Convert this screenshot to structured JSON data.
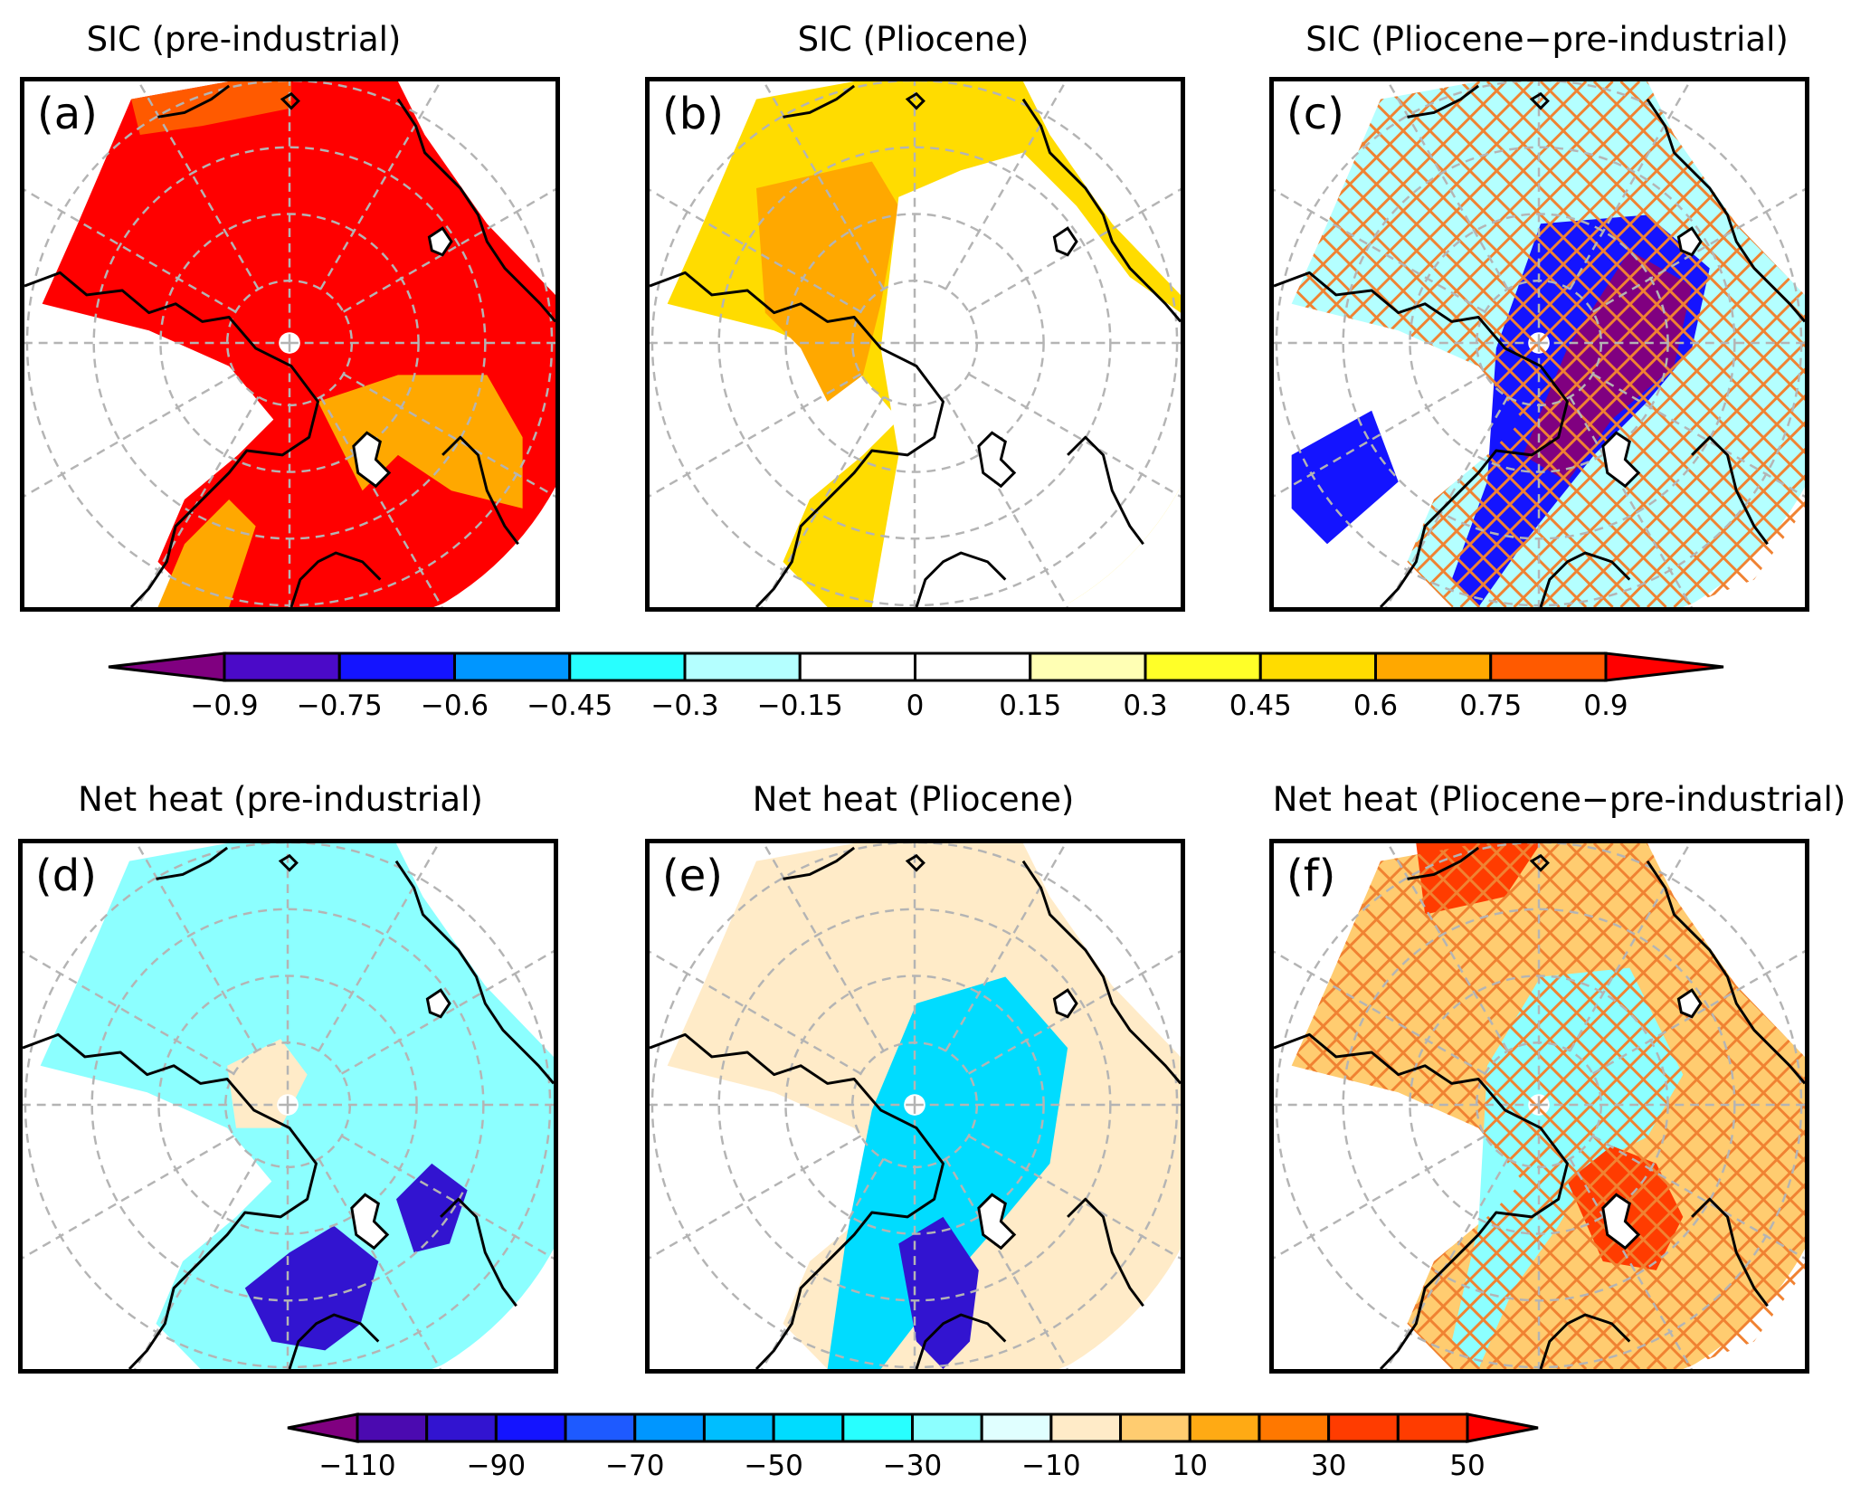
{
  "figure": {
    "rows": [
      {
        "variable": "SIC",
        "panels": [
          {
            "id": "a",
            "label": "(a)",
            "title": "SIC (pre-industrial)",
            "field": "sic_pi",
            "hatching": "none"
          },
          {
            "id": "b",
            "label": "(b)",
            "title": "SIC (Pliocene)",
            "field": "sic_plio",
            "hatching": "none"
          },
          {
            "id": "c",
            "label": "(c)",
            "title": "SIC (Pliocene−pre-industrial)",
            "field": "sic_diff",
            "hatching": "significance"
          }
        ],
        "colorbar": {
          "ticks": [
            "−0.9",
            "−0.75",
            "−0.6",
            "−0.45",
            "−0.3",
            "−0.15",
            "0",
            "0.15",
            "0.3",
            "0.45",
            "0.6",
            "0.75",
            "0.9"
          ],
          "levels": [
            -0.9,
            -0.75,
            -0.6,
            -0.45,
            -0.3,
            -0.15,
            0,
            0.15,
            0.3,
            0.45,
            0.6,
            0.75,
            0.9
          ],
          "under_color": "#800080",
          "colors": [
            "#4B0AC8",
            "#1414FF",
            "#0096FF",
            "#28FFFF",
            "#B4FFFF",
            "#FFFFFF",
            "#FFFFFF",
            "#FFFFB4",
            "#FFFF28",
            "#FFDC00",
            "#FFA800",
            "#FF5A00"
          ],
          "over_color": "#FF0000",
          "extend": "both"
        }
      },
      {
        "variable": "Net heat",
        "panels": [
          {
            "id": "d",
            "label": "(d)",
            "title": "Net heat (pre-industrial)",
            "field": "heat_pi",
            "hatching": "none"
          },
          {
            "id": "e",
            "label": "(e)",
            "title": "Net heat (Pliocene)",
            "field": "heat_plio",
            "hatching": "none"
          },
          {
            "id": "f",
            "label": "(f)",
            "title": "Net heat (Pliocene−pre-industrial)",
            "field": "heat_diff",
            "hatching": "significance"
          }
        ],
        "colorbar": {
          "ticks": [
            "−110",
            "−90",
            "−70",
            "−50",
            "−30",
            "−10",
            "10",
            "30",
            "50"
          ],
          "levels": [
            -110,
            -100,
            -90,
            -80,
            -70,
            -60,
            -50,
            -40,
            -30,
            -20,
            -10,
            0,
            10,
            20,
            30,
            40,
            50
          ],
          "tick_values": [
            -110,
            -90,
            -70,
            -50,
            -30,
            -10,
            10,
            30,
            50
          ],
          "under_color": "#800080",
          "colors": [
            "#4B0AB0",
            "#3214D0",
            "#1414FF",
            "#1E5AFF",
            "#0096FF",
            "#00BEFF",
            "#00DCFF",
            "#28FFFF",
            "#8CFFFF",
            "#E0FFFF",
            "#FFEBC8",
            "#FFCC70",
            "#FFAA14",
            "#FF7800",
            "#FF3C00",
            "#FF3C00"
          ],
          "over_color": "#FF0000",
          "extend": "both"
        }
      }
    ],
    "map": {
      "projection": "north-polar-stereographic",
      "grid_color": "#B4B4B4",
      "coast_color": "#000000",
      "hatch_color": "#F08232",
      "parallels_count": 4,
      "meridian_step_deg": 30
    },
    "fields": {
      "sic_pi": {
        "dominant": 0.95,
        "atlantic_edge": 0.6,
        "pacific_edge": 0.75
      },
      "sic_plio": {
        "dominant": 0.5,
        "central_high": 0.7,
        "eastern_arctic": 0.1
      },
      "sic_diff": {
        "dominant": -0.2,
        "eurasian_basin": -0.95,
        "ice_edge": -0.7
      },
      "heat_pi": {
        "dominant": -25,
        "barents_sea": -100,
        "central_arctic": -10
      },
      "heat_plio": {
        "dominant": -10,
        "barents_sea": -100,
        "eurasian_basin": -50
      },
      "heat_diff": {
        "dominant": 8,
        "barents_sea": 45,
        "eurasian_basin": -30
      }
    }
  }
}
